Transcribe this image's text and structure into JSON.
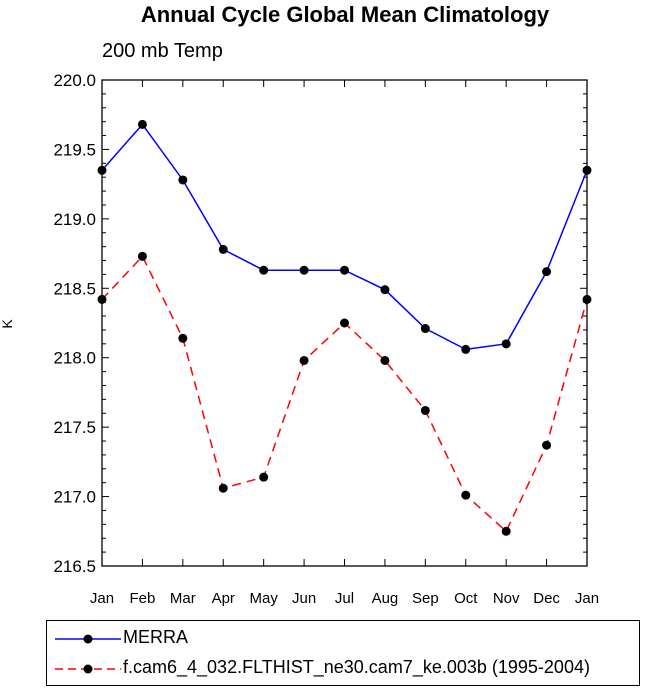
{
  "chart_data": {
    "type": "line",
    "title": "Annual Cycle Global Mean Climatology",
    "subtitle": "200 mb Temp",
    "xlabel": "",
    "ylabel": "K",
    "categories": [
      "Jan",
      "Feb",
      "Mar",
      "Apr",
      "May",
      "Jun",
      "Jul",
      "Aug",
      "Sep",
      "Oct",
      "Nov",
      "Dec",
      "Jan"
    ],
    "ylim": [
      216.5,
      220.0
    ],
    "yticks": [
      "216.5",
      "217.0",
      "217.5",
      "218.0",
      "218.5",
      "219.0",
      "219.5",
      "220.0"
    ],
    "grid": false,
    "legend_position": "bottom",
    "series": [
      {
        "name": "MERRA",
        "color": "#0000ff",
        "dash": "solid",
        "values": [
          219.35,
          219.68,
          219.28,
          218.78,
          218.63,
          218.63,
          218.63,
          218.49,
          218.21,
          218.06,
          218.1,
          218.62,
          219.35
        ]
      },
      {
        "name": "f.cam6_4_032.FLTHIST_ne30.cam7_ke.003b (1995-2004)",
        "color": "#ff0000",
        "dash": "dashed",
        "values": [
          218.42,
          218.73,
          218.14,
          217.06,
          217.14,
          217.98,
          218.25,
          217.98,
          217.62,
          217.01,
          216.75,
          217.37,
          218.42
        ]
      }
    ]
  }
}
